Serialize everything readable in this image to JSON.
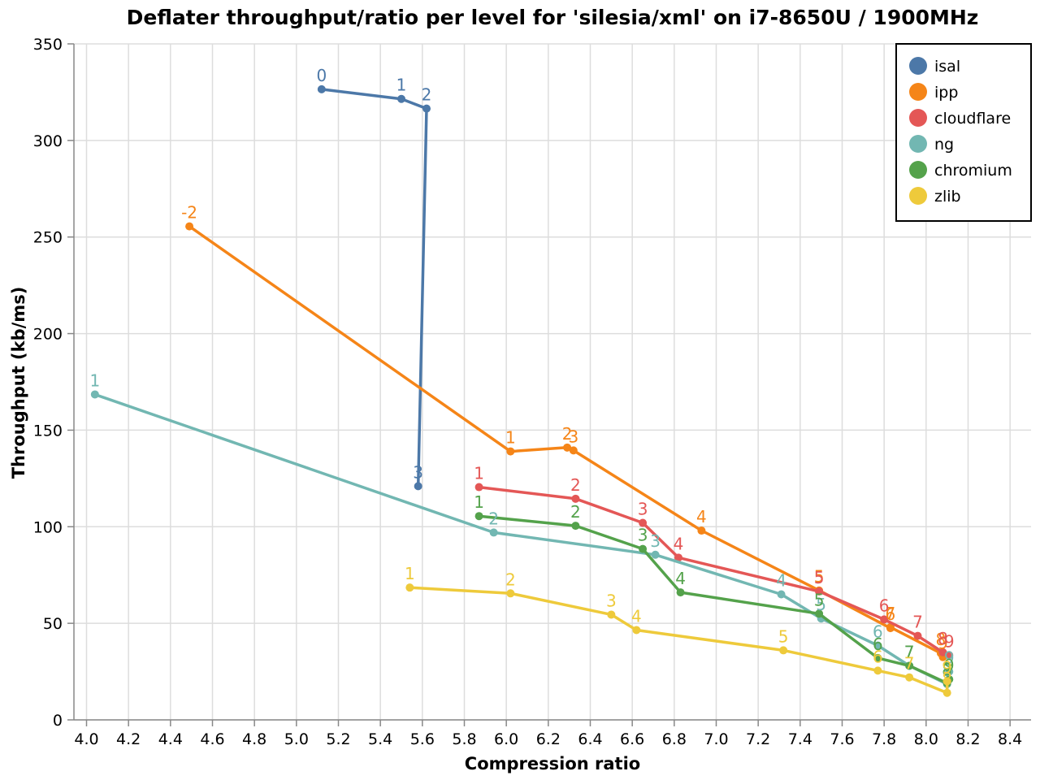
{
  "chart_data": {
    "type": "line",
    "title": "Deflater throughput/ratio per level for 'silesia/xml' on i7-8650U / 1900MHz",
    "xlabel": "Compression ratio",
    "ylabel": "Throughput (kb/ms)",
    "xlim": [
      3.94,
      8.5
    ],
    "ylim": [
      0,
      350
    ],
    "x_ticks": [
      "4.0",
      "4.2",
      "4.4",
      "4.6",
      "4.8",
      "5.0",
      "5.2",
      "5.4",
      "5.6",
      "5.8",
      "6.0",
      "6.2",
      "6.4",
      "6.6",
      "6.8",
      "7.0",
      "7.2",
      "7.4",
      "7.6",
      "7.8",
      "8.0",
      "8.2",
      "8.4"
    ],
    "y_ticks": [
      "0",
      "50",
      "100",
      "150",
      "200",
      "250",
      "300",
      "350"
    ],
    "grid": true,
    "legend_position": "top-right",
    "series": [
      {
        "name": "isal",
        "color": "#4c78a8",
        "points": [
          {
            "x": 5.12,
            "y": 326.5,
            "label": "0"
          },
          {
            "x": 5.5,
            "y": 321.5,
            "label": "1"
          },
          {
            "x": 5.62,
            "y": 316.5,
            "label": "2"
          },
          {
            "x": 5.58,
            "y": 121.0,
            "label": "3"
          }
        ]
      },
      {
        "name": "ipp",
        "color": "#f58518",
        "points": [
          {
            "x": 4.49,
            "y": 255.5,
            "label": "-2"
          },
          {
            "x": 6.02,
            "y": 139.0,
            "label": "1"
          },
          {
            "x": 6.29,
            "y": 141.0,
            "label": "2"
          },
          {
            "x": 6.32,
            "y": 139.5,
            "label": "3"
          },
          {
            "x": 6.93,
            "y": 98.0,
            "label": "4"
          },
          {
            "x": 7.49,
            "y": 67.0,
            "label": "5"
          },
          {
            "x": 7.83,
            "y": 47.5,
            "label": "6"
          },
          {
            "x": 7.83,
            "y": 48.0,
            "label": "7"
          },
          {
            "x": 8.07,
            "y": 34.5,
            "label": "8"
          },
          {
            "x": 8.08,
            "y": 32.5,
            "label": "9"
          }
        ]
      },
      {
        "name": "cloudflare",
        "color": "#e45756",
        "points": [
          {
            "x": 5.87,
            "y": 120.5,
            "label": "1"
          },
          {
            "x": 6.33,
            "y": 114.5,
            "label": "2"
          },
          {
            "x": 6.65,
            "y": 102.0,
            "label": "3"
          },
          {
            "x": 6.82,
            "y": 84.0,
            "label": "4"
          },
          {
            "x": 7.49,
            "y": 66.5,
            "label": "5"
          },
          {
            "x": 7.8,
            "y": 52.0,
            "label": "6"
          },
          {
            "x": 7.96,
            "y": 43.5,
            "label": "7"
          },
          {
            "x": 8.08,
            "y": 35.0,
            "label": "8"
          },
          {
            "x": 8.11,
            "y": 33.5,
            "label": "9"
          }
        ]
      },
      {
        "name": "ng",
        "color": "#72b7b2",
        "points": [
          {
            "x": 4.04,
            "y": 168.5,
            "label": "1"
          },
          {
            "x": 5.94,
            "y": 97.0,
            "label": "2"
          },
          {
            "x": 6.71,
            "y": 85.5,
            "label": "3"
          },
          {
            "x": 7.31,
            "y": 65.0,
            "label": "4"
          },
          {
            "x": 7.5,
            "y": 52.5,
            "label": "5"
          },
          {
            "x": 7.77,
            "y": 38.5,
            "label": "6"
          },
          {
            "x": 7.92,
            "y": 28.0,
            "label": "7"
          },
          {
            "x": 8.1,
            "y": 18.5,
            "label": "8"
          },
          {
            "x": 8.11,
            "y": 25.0,
            "label": "9"
          }
        ]
      },
      {
        "name": "chromium",
        "color": "#54a24b",
        "points": [
          {
            "x": 5.87,
            "y": 105.5,
            "label": "1"
          },
          {
            "x": 6.33,
            "y": 100.5,
            "label": "2"
          },
          {
            "x": 6.65,
            "y": 88.5,
            "label": "3"
          },
          {
            "x": 6.83,
            "y": 66.0,
            "label": "4"
          },
          {
            "x": 7.49,
            "y": 55.0,
            "label": "5"
          },
          {
            "x": 7.77,
            "y": 32.0,
            "label": "6"
          },
          {
            "x": 7.92,
            "y": 28.0,
            "label": "7"
          },
          {
            "x": 8.1,
            "y": 19.0,
            "label": "8"
          },
          {
            "x": 8.11,
            "y": 21.0,
            "label": "9"
          }
        ]
      },
      {
        "name": "zlib",
        "color": "#eeca3b",
        "points": [
          {
            "x": 5.54,
            "y": 68.5,
            "label": "1"
          },
          {
            "x": 6.02,
            "y": 65.5,
            "label": "2"
          },
          {
            "x": 6.5,
            "y": 54.5,
            "label": "3"
          },
          {
            "x": 6.62,
            "y": 46.5,
            "label": "4"
          },
          {
            "x": 7.32,
            "y": 36.0,
            "label": "5"
          },
          {
            "x": 7.77,
            "y": 25.5,
            "label": "6"
          },
          {
            "x": 7.92,
            "y": 22.0,
            "label": "7"
          },
          {
            "x": 8.1,
            "y": 14.0,
            "label": "8"
          },
          {
            "x": 8.1,
            "y": 20.0,
            "label": "9"
          }
        ]
      }
    ]
  }
}
